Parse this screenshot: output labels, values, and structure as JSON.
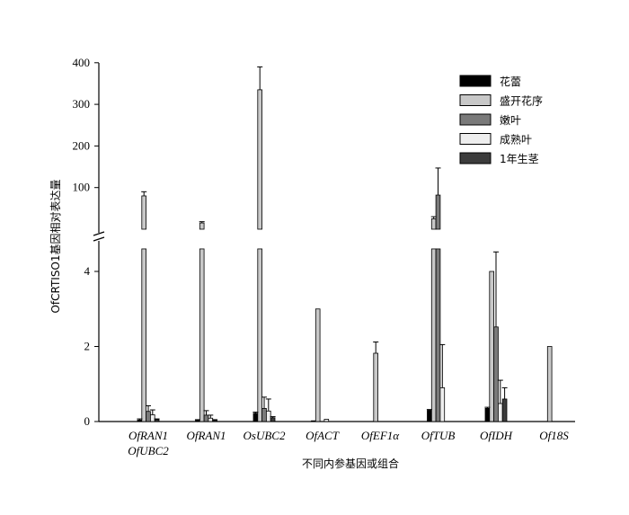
{
  "chart_data": {
    "type": "bar",
    "xlabel": "不同内参基因或组合",
    "ylabel": "OfCRTISO1基因相对表达量",
    "y_axis_break": true,
    "ylim_lower": [
      0,
      4.6
    ],
    "ylim_upper": [
      0,
      400
    ],
    "yticks_lower": [
      "0",
      "2",
      "4"
    ],
    "yticks_upper": [
      "100",
      "200",
      "300",
      "400"
    ],
    "legend_position": "top-right",
    "categories": [
      {
        "lines": [
          "OfRAN1",
          "OfUBC2"
        ]
      },
      {
        "lines": [
          "OfRAN1"
        ]
      },
      {
        "lines": [
          "OsUBC2"
        ]
      },
      {
        "lines": [
          "OfACT"
        ]
      },
      {
        "lines": [
          "OfEF1α"
        ]
      },
      {
        "lines": [
          "OfTUB"
        ]
      },
      {
        "lines": [
          "OfIDH"
        ]
      },
      {
        "lines": [
          "Of18S"
        ]
      }
    ],
    "series": [
      {
        "name": "花蕾",
        "color": "#000000",
        "values": [
          0.04,
          0.03,
          0.22,
          0.02,
          0.0,
          0.3,
          0.35,
          0.0
        ],
        "errors": [
          0.03,
          0.02,
          0.03,
          0.0,
          0.0,
          0.02,
          0.03,
          0.0
        ]
      },
      {
        "name": "盛开花序",
        "color": "#c8c8c8",
        "values": [
          80,
          15,
          335,
          3,
          1.82,
          25,
          4,
          2
        ],
        "errors": [
          10,
          3,
          55,
          0,
          0.3,
          5,
          0,
          0
        ]
      },
      {
        "name": "嫩叶",
        "color": "#7a7a7a",
        "values": [
          0.27,
          0.17,
          0.35,
          0.0,
          0.0,
          82,
          2.52,
          0.0
        ],
        "errors": [
          0.15,
          0.12,
          0.3,
          0.0,
          0.0,
          65,
          2.0,
          0.0
        ]
      },
      {
        "name": "成熟叶",
        "color": "#eeeeee",
        "values": [
          0.18,
          0.09,
          0.28,
          0.06,
          0.0,
          0.9,
          0.48,
          0.0
        ],
        "errors": [
          0.13,
          0.08,
          0.32,
          0.0,
          0.0,
          1.15,
          0.62,
          0.0
        ]
      },
      {
        "name": "1年生茎",
        "color": "#3c3c3c",
        "values": [
          0.05,
          0.03,
          0.1,
          0.0,
          0.0,
          0.0,
          0.6,
          0.0
        ],
        "errors": [
          0.02,
          0.02,
          0.03,
          0.0,
          0.0,
          0.0,
          0.3,
          0.0
        ]
      }
    ]
  }
}
